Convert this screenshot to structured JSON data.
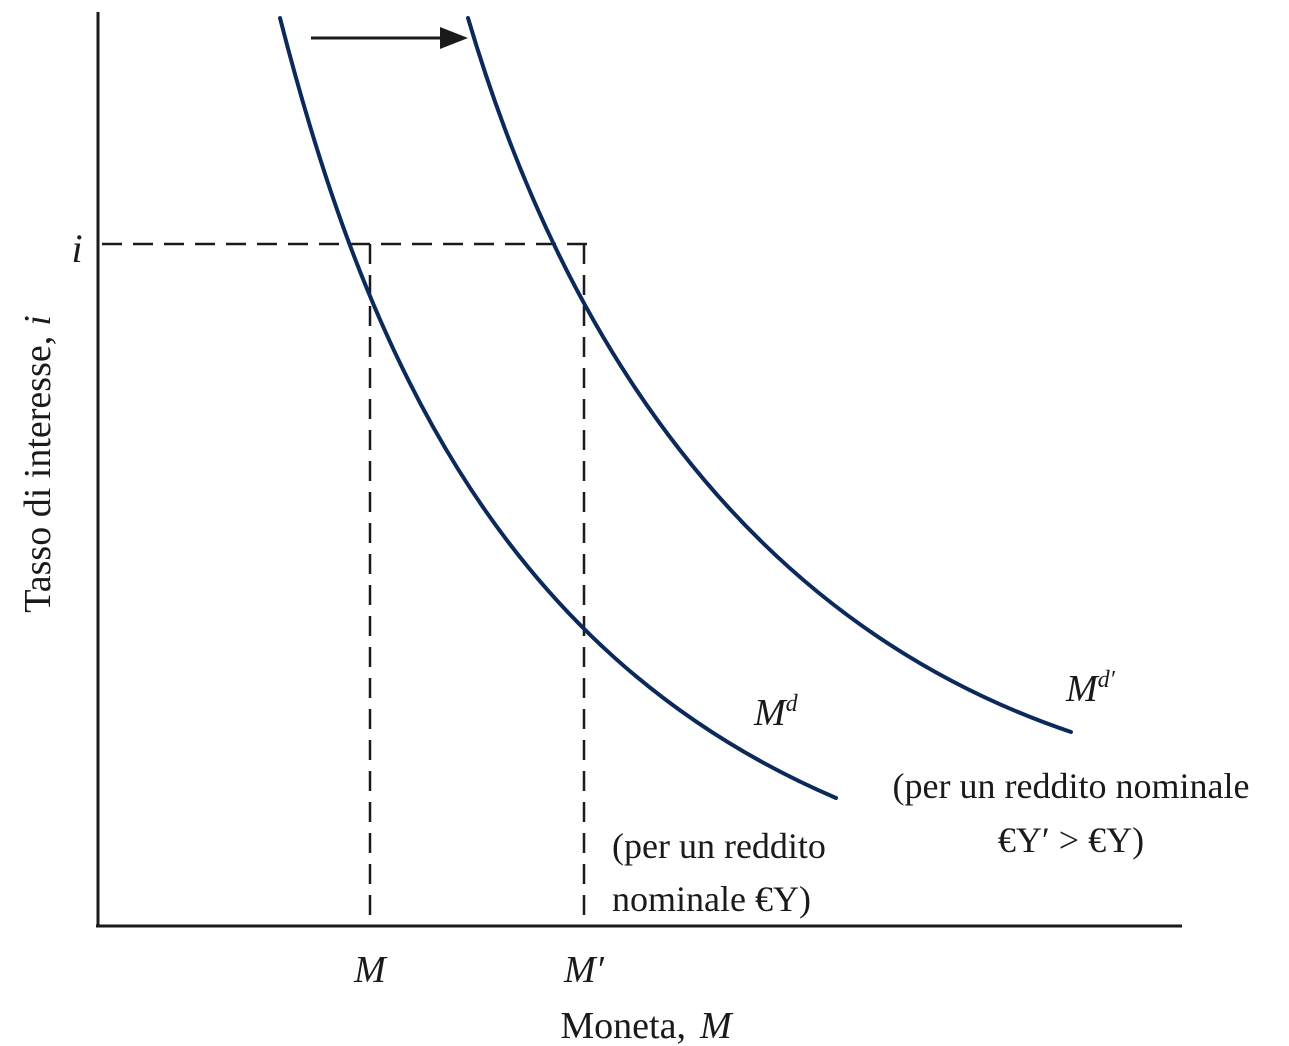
{
  "colors": {
    "curve": "#0b2a5b",
    "axis": "#1a1a1a",
    "background": "#ffffff"
  },
  "y_axis": {
    "label": "Tasso di interesse,",
    "symbol": "i",
    "tick_label": "i"
  },
  "x_axis": {
    "label": "Moneta,",
    "symbol": "M",
    "tick_labels": [
      "M",
      "M′"
    ]
  },
  "curves": [
    {
      "name": "M",
      "superscript": "d",
      "note_lines": [
        "(per un reddito",
        "nominale €Y)"
      ]
    },
    {
      "name": "M",
      "superscript": "d′",
      "note_lines": [
        "(per un reddito nominale",
        "€Y′ > €Y)"
      ]
    }
  ],
  "shift_arrow": {
    "direction": "right",
    "icon": "right-arrow-icon"
  }
}
